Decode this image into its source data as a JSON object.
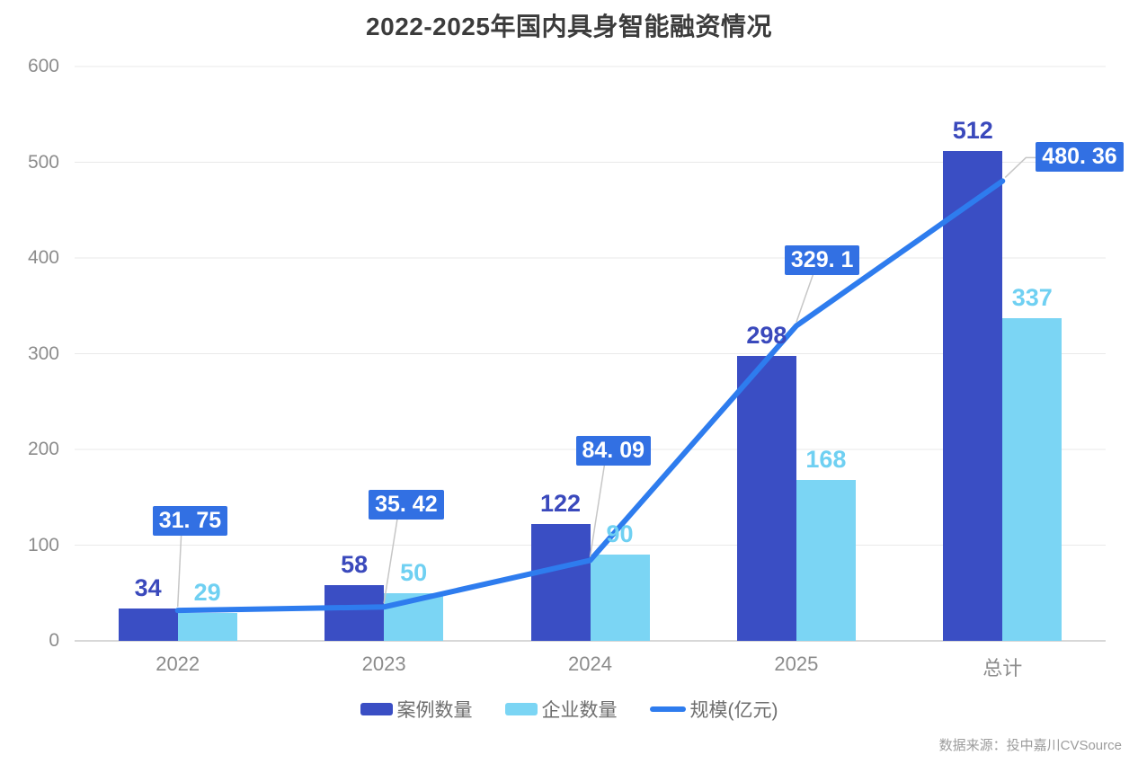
{
  "title": "2022-2025年国内具身智能融资情况",
  "source": "数据来源：投中嘉川CVSource",
  "chart_data": {
    "type": "combo",
    "title": "2022-2025年国内具身智能融资情况",
    "categories": [
      "2022",
      "2023",
      "2024",
      "2025",
      "总计"
    ],
    "series": [
      {
        "name": "案例数量",
        "type": "bar",
        "color": "#3a4ec4",
        "label_color": "#3a49bc",
        "values": [
          34,
          58,
          122,
          298,
          512
        ]
      },
      {
        "name": "企业数量",
        "type": "bar",
        "color": "#7bd5f4",
        "label_color": "#6fd0f2",
        "values": [
          29,
          50,
          90,
          168,
          337
        ]
      },
      {
        "name": "规模(亿元)",
        "type": "line",
        "color": "#2e7cee",
        "label_bg": "#3270e3",
        "label_text_color": "#ffffff",
        "values": [
          31.75,
          35.42,
          84.09,
          329.1,
          480.36
        ],
        "value_labels": [
          "31. 75",
          "35. 42",
          "84. 09",
          "329. 1",
          "480. 36"
        ]
      }
    ],
    "ylim": [
      0,
      600
    ],
    "yticks": [
      0,
      100,
      200,
      300,
      400,
      500,
      600
    ],
    "grid": true,
    "legend_position": "bottom"
  }
}
